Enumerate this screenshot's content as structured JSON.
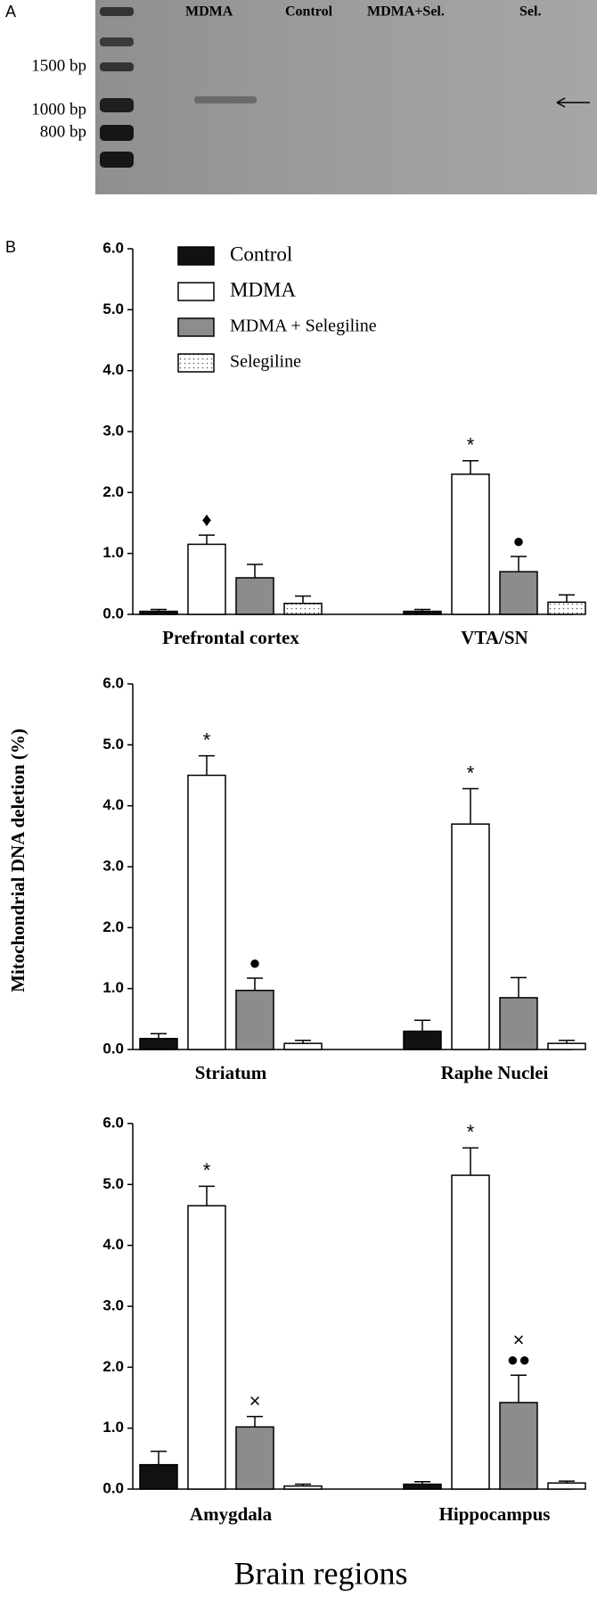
{
  "panel_a": {
    "label": "A",
    "lanes": [
      "MDMA",
      "Control",
      "MDMA+Sel.",
      "Sel."
    ],
    "sizes": [
      "1500 bp",
      "1000 bp",
      "800 bp"
    ]
  },
  "panel_b_label": "B",
  "y_label": "Mitochondrial DNA deletion (%)",
  "x_label": "Brain regions",
  "chart_data": [
    {
      "type": "bar",
      "categories": [
        "Prefrontal cortex",
        "VTA/SN"
      ],
      "legend": "upper left",
      "ylim": [
        0,
        6
      ],
      "yticks": [
        {
          "value": 0,
          "label": "0.0"
        },
        {
          "value": 1,
          "label": "1.0"
        },
        {
          "value": 2,
          "label": "2.0"
        },
        {
          "value": 3,
          "label": "3.0"
        },
        {
          "value": 4,
          "label": "4.0"
        },
        {
          "value": 5,
          "label": "5.0"
        },
        {
          "value": 6,
          "label": "6.0"
        }
      ],
      "series": [
        {
          "name": "Control",
          "color": "#111111",
          "values": [
            0.05,
            0.05
          ],
          "errors": [
            0.03,
            0.03
          ]
        },
        {
          "name": "MDMA",
          "color": "#ffffff",
          "values": [
            1.15,
            2.3
          ],
          "errors": [
            0.15,
            0.22
          ],
          "markers": [
            "♦",
            "*"
          ]
        },
        {
          "name": "MDMA + Selegiline",
          "color": "#8c8c8c",
          "values": [
            0.6,
            0.7
          ],
          "errors": [
            0.22,
            0.25
          ],
          "markers": [
            null,
            "●"
          ]
        },
        {
          "name": "Selegiline",
          "color": "#ffffff",
          "pattern": "dots",
          "values": [
            0.18,
            0.2
          ],
          "errors": [
            0.12,
            0.12
          ]
        }
      ]
    },
    {
      "type": "bar",
      "categories": [
        "Striatum",
        "Raphe Nuclei"
      ],
      "ylim": [
        0,
        6
      ],
      "yticks": [
        {
          "value": 0,
          "label": "0.0"
        },
        {
          "value": 1,
          "label": "1.0"
        },
        {
          "value": 2,
          "label": "2.0"
        },
        {
          "value": 3,
          "label": "3.0"
        },
        {
          "value": 4,
          "label": "4.0"
        },
        {
          "value": 5,
          "label": "5.0"
        },
        {
          "value": 6,
          "label": "6.0"
        }
      ],
      "series": [
        {
          "color": "#111111",
          "values": [
            0.18,
            0.3
          ],
          "errors": [
            0.08,
            0.18
          ]
        },
        {
          "color": "#ffffff",
          "values": [
            4.5,
            3.7
          ],
          "errors": [
            0.32,
            0.58
          ],
          "markers": [
            "*",
            "*"
          ]
        },
        {
          "color": "#8c8c8c",
          "values": [
            0.97,
            0.85
          ],
          "errors": [
            0.2,
            0.33
          ],
          "markers": [
            "●",
            null
          ]
        },
        {
          "color": "#ffffff",
          "values": [
            0.1,
            0.1
          ],
          "errors": [
            0.05,
            0.05
          ]
        }
      ]
    },
    {
      "type": "bar",
      "categories": [
        "Amygdala",
        "Hippocampus"
      ],
      "ylim": [
        0,
        6
      ],
      "yticks": [
        {
          "value": 0,
          "label": "0.0"
        },
        {
          "value": 1,
          "label": "1.0"
        },
        {
          "value": 2,
          "label": "2.0"
        },
        {
          "value": 3,
          "label": "3.0"
        },
        {
          "value": 4,
          "label": "4.0"
        },
        {
          "value": 5,
          "label": "5.0"
        },
        {
          "value": 6,
          "label": "6.0"
        }
      ],
      "series": [
        {
          "color": "#111111",
          "values": [
            0.4,
            0.08
          ],
          "errors": [
            0.22,
            0.04
          ]
        },
        {
          "color": "#ffffff",
          "values": [
            4.65,
            5.15
          ],
          "errors": [
            0.32,
            0.45
          ],
          "markers": [
            "*",
            "*"
          ]
        },
        {
          "color": "#8c8c8c",
          "values": [
            1.02,
            1.42
          ],
          "errors": [
            0.17,
            0.45
          ],
          "markers": [
            "×",
            [
              "×",
              "●●"
            ]
          ]
        },
        {
          "color": "#ffffff",
          "values": [
            0.05,
            0.1
          ],
          "errors": [
            0.03,
            0.03
          ]
        }
      ]
    }
  ]
}
